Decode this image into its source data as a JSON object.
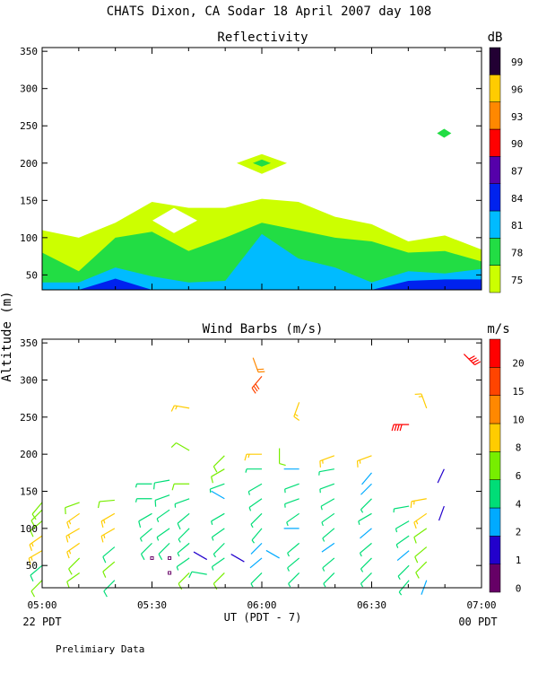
{
  "page": {
    "main_title": "CHATS Dixon, CA  Sodar  18 April 2007  day 108",
    "footnote": "Prelimiary Data",
    "shared_ylabel": "Altitude (m)",
    "xlabel": "UT  (PDT - 7)",
    "left_time_note": "22 PDT",
    "right_time_note": "00 PDT"
  },
  "chart_data": [
    {
      "type": "heatmap",
      "title": "Reflectivity",
      "xlabel": "UT  (PDT - 7)",
      "ylabel": "Altitude (m)",
      "x_ticks": [
        "05:00",
        "05:30",
        "06:00",
        "06:30",
        "07:00"
      ],
      "x_range_hours": [
        5.0,
        7.0
      ],
      "y_ticks": [
        50,
        100,
        150,
        200,
        250,
        300,
        350
      ],
      "ylim": [
        30,
        355
      ],
      "colorbar": {
        "unit": "dB",
        "levels": [
          75,
          78,
          81,
          84,
          87,
          90,
          93,
          96,
          99
        ],
        "colors": [
          "#ccff00",
          "#22dd44",
          "#00bbff",
          "#0022ee",
          "#5500aa",
          "#ff0000",
          "#ff8800",
          "#ffcc00",
          "#220033"
        ]
      },
      "times": [
        5.0,
        5.1667,
        5.3333,
        5.5,
        5.6667,
        5.8333,
        6.0,
        6.1667,
        6.3333,
        6.5,
        6.6667,
        6.8333,
        7.0
      ],
      "contours": {
        "top_75": [
          110,
          100,
          120,
          148,
          140,
          140,
          152,
          148,
          128,
          118,
          95,
          103,
          84
        ],
        "top_78": [
          80,
          55,
          100,
          108,
          82,
          100,
          120,
          110,
          100,
          95,
          80,
          82,
          68
        ],
        "top_81": [
          40,
          40,
          60,
          48,
          40,
          42,
          105,
          72,
          60,
          40,
          55,
          52,
          58
        ],
        "top_84": [
          30,
          30,
          45,
          30,
          30,
          30,
          30,
          30,
          30,
          30,
          42,
          44,
          44
        ]
      },
      "blobs": [
        {
          "time": 6.0,
          "alt": 200,
          "level_outer": 75,
          "level_inner": 78
        },
        {
          "time": 6.83,
          "alt": 240,
          "level_outer": 78
        }
      ],
      "gap": {
        "time": 5.6,
        "alt": 123
      }
    },
    {
      "type": "wind-barbs",
      "title": "Wind Barbs (m/s)",
      "xlabel": "UT  (PDT - 7)",
      "ylabel": "Altitude (m)",
      "x_ticks": [
        "05:00",
        "05:30",
        "06:00",
        "06:30",
        "07:00"
      ],
      "y_ticks": [
        50,
        100,
        150,
        200,
        250,
        300,
        350
      ],
      "ylim": [
        20,
        355
      ],
      "colorbar": {
        "unit": "m/s",
        "labels": [
          0,
          1,
          2,
          4,
          6,
          8,
          10,
          15,
          20
        ],
        "colors": [
          "#660066",
          "#2200cc",
          "#00aaff",
          "#00dd77",
          "#77ee00",
          "#ffcc00",
          "#ff8800",
          "#ff4400",
          "#ff0000"
        ]
      },
      "barbs": [
        {
          "t": 5.0,
          "alt": 30,
          "dir": 225,
          "spd": 6
        },
        {
          "t": 5.0,
          "alt": 50,
          "dir": 230,
          "spd": 5
        },
        {
          "t": 5.0,
          "alt": 70,
          "dir": 240,
          "spd": 8
        },
        {
          "t": 5.0,
          "alt": 90,
          "dir": 235,
          "spd": 8
        },
        {
          "t": 5.0,
          "alt": 110,
          "dir": 230,
          "spd": 6
        },
        {
          "t": 5.0,
          "alt": 125,
          "dir": 225,
          "spd": 6
        },
        {
          "t": 5.0,
          "alt": 135,
          "dir": 220,
          "spd": 6
        },
        {
          "t": 5.17,
          "alt": 40,
          "dir": 235,
          "spd": 6
        },
        {
          "t": 5.17,
          "alt": 60,
          "dir": 225,
          "spd": 6
        },
        {
          "t": 5.17,
          "alt": 80,
          "dir": 235,
          "spd": 8
        },
        {
          "t": 5.17,
          "alt": 100,
          "dir": 240,
          "spd": 8
        },
        {
          "t": 5.17,
          "alt": 120,
          "dir": 235,
          "spd": 8
        },
        {
          "t": 5.17,
          "alt": 135,
          "dir": 250,
          "spd": 6
        },
        {
          "t": 5.33,
          "alt": 30,
          "dir": 225,
          "spd": 5
        },
        {
          "t": 5.33,
          "alt": 55,
          "dir": 230,
          "spd": 6
        },
        {
          "t": 5.33,
          "alt": 75,
          "dir": 230,
          "spd": 5
        },
        {
          "t": 5.33,
          "alt": 100,
          "dir": 240,
          "spd": 8
        },
        {
          "t": 5.33,
          "alt": 120,
          "dir": 240,
          "spd": 8
        },
        {
          "t": 5.33,
          "alt": 138,
          "dir": 265,
          "spd": 6
        },
        {
          "t": 5.5,
          "alt": 60,
          "dir": 0,
          "spd": 0
        },
        {
          "t": 5.5,
          "alt": 80,
          "dir": 225,
          "spd": 5
        },
        {
          "t": 5.5,
          "alt": 100,
          "dir": 230,
          "spd": 4
        },
        {
          "t": 5.5,
          "alt": 120,
          "dir": 240,
          "spd": 5
        },
        {
          "t": 5.5,
          "alt": 140,
          "dir": 270,
          "spd": 4
        },
        {
          "t": 5.5,
          "alt": 160,
          "dir": 270,
          "spd": 4
        },
        {
          "t": 5.58,
          "alt": 40,
          "dir": 0,
          "spd": 0
        },
        {
          "t": 5.58,
          "alt": 60,
          "dir": 0,
          "spd": 0
        },
        {
          "t": 5.58,
          "alt": 80,
          "dir": 225,
          "spd": 5
        },
        {
          "t": 5.58,
          "alt": 100,
          "dir": 235,
          "spd": 4
        },
        {
          "t": 5.58,
          "alt": 125,
          "dir": 235,
          "spd": 4
        },
        {
          "t": 5.58,
          "alt": 145,
          "dir": 250,
          "spd": 5
        },
        {
          "t": 5.58,
          "alt": 165,
          "dir": 260,
          "spd": 5
        },
        {
          "t": 5.67,
          "alt": 40,
          "dir": 225,
          "spd": 6
        },
        {
          "t": 5.67,
          "alt": 60,
          "dir": 235,
          "spd": 4
        },
        {
          "t": 5.67,
          "alt": 80,
          "dir": 230,
          "spd": 4
        },
        {
          "t": 5.67,
          "alt": 100,
          "dir": 225,
          "spd": 4
        },
        {
          "t": 5.67,
          "alt": 120,
          "dir": 230,
          "spd": 5
        },
        {
          "t": 5.67,
          "alt": 140,
          "dir": 250,
          "spd": 4
        },
        {
          "t": 5.67,
          "alt": 160,
          "dir": 270,
          "spd": 6
        },
        {
          "t": 5.67,
          "alt": 205,
          "dir": 300,
          "spd": 6
        },
        {
          "t": 5.67,
          "alt": 262,
          "dir": 280,
          "spd": 8
        },
        {
          "t": 5.75,
          "alt": 38,
          "dir": 280,
          "spd": 5
        },
        {
          "t": 5.75,
          "alt": 58,
          "dir": 300,
          "spd": 1
        },
        {
          "t": 5.83,
          "alt": 40,
          "dir": 225,
          "spd": 6
        },
        {
          "t": 5.83,
          "alt": 60,
          "dir": 235,
          "spd": 4
        },
        {
          "t": 5.83,
          "alt": 80,
          "dir": 225,
          "spd": 4
        },
        {
          "t": 5.83,
          "alt": 100,
          "dir": 235,
          "spd": 4
        },
        {
          "t": 5.83,
          "alt": 120,
          "dir": 240,
          "spd": 4
        },
        {
          "t": 5.83,
          "alt": 140,
          "dir": 300,
          "spd": 2
        },
        {
          "t": 5.83,
          "alt": 160,
          "dir": 250,
          "spd": 4
        },
        {
          "t": 5.83,
          "alt": 180,
          "dir": 240,
          "spd": 6
        },
        {
          "t": 5.83,
          "alt": 198,
          "dir": 225,
          "spd": 6
        },
        {
          "t": 5.92,
          "alt": 55,
          "dir": 300,
          "spd": 1
        },
        {
          "t": 5.96,
          "alt": 330,
          "dir": 160,
          "spd": 10
        },
        {
          "t": 6.0,
          "alt": 305,
          "dir": 220,
          "spd": 15
        },
        {
          "t": 6.0,
          "alt": 40,
          "dir": 225,
          "spd": 4
        },
        {
          "t": 6.0,
          "alt": 60,
          "dir": 230,
          "spd": 2
        },
        {
          "t": 6.0,
          "alt": 80,
          "dir": 225,
          "spd": 2
        },
        {
          "t": 6.0,
          "alt": 100,
          "dir": 220,
          "spd": 4
        },
        {
          "t": 6.0,
          "alt": 120,
          "dir": 225,
          "spd": 4
        },
        {
          "t": 6.0,
          "alt": 140,
          "dir": 235,
          "spd": 4
        },
        {
          "t": 6.0,
          "alt": 160,
          "dir": 240,
          "spd": 4
        },
        {
          "t": 6.0,
          "alt": 180,
          "dir": 270,
          "spd": 4
        },
        {
          "t": 6.0,
          "alt": 200,
          "dir": 270,
          "spd": 8
        },
        {
          "t": 6.08,
          "alt": 60,
          "dir": 300,
          "spd": 2
        },
        {
          "t": 6.08,
          "alt": 208,
          "dir": 180,
          "spd": 6
        },
        {
          "t": 6.17,
          "alt": 40,
          "dir": 225,
          "spd": 4
        },
        {
          "t": 6.17,
          "alt": 60,
          "dir": 230,
          "spd": 4
        },
        {
          "t": 6.17,
          "alt": 80,
          "dir": 230,
          "spd": 4
        },
        {
          "t": 6.17,
          "alt": 100,
          "dir": 270,
          "spd": 2
        },
        {
          "t": 6.17,
          "alt": 120,
          "dir": 235,
          "spd": 4
        },
        {
          "t": 6.17,
          "alt": 140,
          "dir": 250,
          "spd": 4
        },
        {
          "t": 6.17,
          "alt": 160,
          "dir": 250,
          "spd": 4
        },
        {
          "t": 6.17,
          "alt": 180,
          "dir": 270,
          "spd": 2
        },
        {
          "t": 6.17,
          "alt": 270,
          "dir": 200,
          "spd": 8
        },
        {
          "t": 6.33,
          "alt": 40,
          "dir": 225,
          "spd": 4
        },
        {
          "t": 6.33,
          "alt": 60,
          "dir": 230,
          "spd": 4
        },
        {
          "t": 6.33,
          "alt": 80,
          "dir": 235,
          "spd": 2
        },
        {
          "t": 6.33,
          "alt": 100,
          "dir": 230,
          "spd": 4
        },
        {
          "t": 6.33,
          "alt": 120,
          "dir": 235,
          "spd": 4
        },
        {
          "t": 6.33,
          "alt": 140,
          "dir": 240,
          "spd": 4
        },
        {
          "t": 6.33,
          "alt": 160,
          "dir": 250,
          "spd": 4
        },
        {
          "t": 6.33,
          "alt": 180,
          "dir": 260,
          "spd": 4
        },
        {
          "t": 6.33,
          "alt": 198,
          "dir": 250,
          "spd": 8
        },
        {
          "t": 6.5,
          "alt": 40,
          "dir": 225,
          "spd": 4
        },
        {
          "t": 6.5,
          "alt": 60,
          "dir": 225,
          "spd": 4
        },
        {
          "t": 6.5,
          "alt": 80,
          "dir": 230,
          "spd": 4
        },
        {
          "t": 6.5,
          "alt": 100,
          "dir": 230,
          "spd": 2
        },
        {
          "t": 6.5,
          "alt": 120,
          "dir": 240,
          "spd": 4
        },
        {
          "t": 6.5,
          "alt": 140,
          "dir": 225,
          "spd": 4
        },
        {
          "t": 6.5,
          "alt": 160,
          "dir": 225,
          "spd": 2
        },
        {
          "t": 6.5,
          "alt": 175,
          "dir": 220,
          "spd": 2
        },
        {
          "t": 6.5,
          "alt": 198,
          "dir": 250,
          "spd": 8
        },
        {
          "t": 6.67,
          "alt": 30,
          "dir": 220,
          "spd": 4
        },
        {
          "t": 6.67,
          "alt": 50,
          "dir": 225,
          "spd": 4
        },
        {
          "t": 6.67,
          "alt": 70,
          "dir": 230,
          "spd": 2
        },
        {
          "t": 6.67,
          "alt": 90,
          "dir": 235,
          "spd": 4
        },
        {
          "t": 6.67,
          "alt": 110,
          "dir": 240,
          "spd": 4
        },
        {
          "t": 6.67,
          "alt": 130,
          "dir": 260,
          "spd": 4
        },
        {
          "t": 6.67,
          "alt": 240,
          "dir": 270,
          "spd": 20
        },
        {
          "t": 6.75,
          "alt": 30,
          "dir": 200,
          "spd": 2
        },
        {
          "t": 6.75,
          "alt": 55,
          "dir": 225,
          "spd": 6
        },
        {
          "t": 6.75,
          "alt": 75,
          "dir": 230,
          "spd": 6
        },
        {
          "t": 6.75,
          "alt": 100,
          "dir": 235,
          "spd": 6
        },
        {
          "t": 6.75,
          "alt": 120,
          "dir": 235,
          "spd": 8
        },
        {
          "t": 6.75,
          "alt": 140,
          "dir": 260,
          "spd": 8
        },
        {
          "t": 6.75,
          "alt": 262,
          "dir": 340,
          "spd": 8
        },
        {
          "t": 6.83,
          "alt": 130,
          "dir": 200,
          "spd": 1
        },
        {
          "t": 6.83,
          "alt": 180,
          "dir": 205,
          "spd": 1
        },
        {
          "t": 6.92,
          "alt": 335,
          "dir": 135,
          "spd": 20
        }
      ]
    }
  ]
}
